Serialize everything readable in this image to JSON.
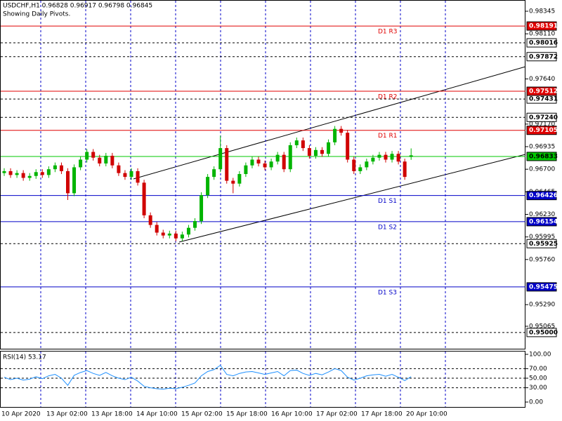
{
  "chart_data": {
    "type": "candlestick",
    "title": "USDCHF,H1  0.96828 0.96917 0.96798 0.96845",
    "subtitle": "Showing Daily Pivots.",
    "up_color": "#00b400",
    "down_color": "#d00000",
    "open": [
      0.9666,
      0.9668,
      0.9664,
      0.9666,
      0.9661,
      0.9663,
      0.9667,
      0.9664,
      0.967,
      0.9674,
      0.9668,
      0.9645,
      0.9672,
      0.968,
      0.9688,
      0.9682,
      0.9676,
      0.9684,
      0.9674,
      0.9666,
      0.9662,
      0.9668,
      0.9656,
      0.9622,
      0.9612,
      0.9604,
      0.9601,
      0.9603,
      0.9598,
      0.9602,
      0.9609,
      0.9616,
      0.9643,
      0.9662,
      0.967,
      0.9692,
      0.9658,
      0.9655,
      0.9665,
      0.9674,
      0.968,
      0.9676,
      0.9672,
      0.9678,
      0.9685,
      0.967,
      0.9695,
      0.97,
      0.9692,
      0.9684,
      0.969,
      0.9686,
      0.9698,
      0.9712,
      0.9708,
      0.968,
      0.9668,
      0.9672,
      0.9678,
      0.9682,
      0.9685,
      0.968,
      0.9686,
      0.9678,
      0.96828
    ],
    "high": [
      0.9671,
      0.9671,
      0.9669,
      0.9669,
      0.9666,
      0.967,
      0.967,
      0.9673,
      0.9677,
      0.9677,
      0.9671,
      0.9675,
      0.9683,
      0.9691,
      0.9691,
      0.9685,
      0.9687,
      0.9687,
      0.9677,
      0.9669,
      0.9671,
      0.9671,
      0.9659,
      0.9625,
      0.9615,
      0.9607,
      0.9606,
      0.9606,
      0.9605,
      0.9612,
      0.9619,
      0.9646,
      0.9665,
      0.9673,
      0.9705,
      0.9695,
      0.9661,
      0.9668,
      0.9677,
      0.9683,
      0.9683,
      0.9679,
      0.9681,
      0.9688,
      0.9688,
      0.9698,
      0.9703,
      0.9703,
      0.9695,
      0.9693,
      0.9693,
      0.9701,
      0.9715,
      0.9715,
      0.9711,
      0.9683,
      0.9675,
      0.9681,
      0.9685,
      0.9688,
      0.9688,
      0.9689,
      0.9689,
      0.9681,
      0.96917
    ],
    "low": [
      0.9663,
      0.9661,
      0.9661,
      0.9658,
      0.9658,
      0.966,
      0.9661,
      0.9661,
      0.9667,
      0.9665,
      0.9638,
      0.9642,
      0.9669,
      0.9677,
      0.9679,
      0.9673,
      0.9673,
      0.9671,
      0.9663,
      0.9659,
      0.9659,
      0.9653,
      0.9619,
      0.9609,
      0.9601,
      0.9598,
      0.9598,
      0.9595,
      0.9595,
      0.9599,
      0.9606,
      0.9613,
      0.964,
      0.9659,
      0.9667,
      0.9655,
      0.9645,
      0.9652,
      0.9662,
      0.9671,
      0.9673,
      0.9669,
      0.9669,
      0.9675,
      0.9667,
      0.9667,
      0.9692,
      0.9689,
      0.9681,
      0.9681,
      0.9683,
      0.9683,
      0.9695,
      0.9705,
      0.9677,
      0.9665,
      0.9665,
      0.9669,
      0.9675,
      0.9679,
      0.9677,
      0.9677,
      0.9675,
      0.9659,
      0.96798
    ],
    "close": [
      0.9668,
      0.9664,
      0.9666,
      0.9661,
      0.9663,
      0.9667,
      0.9664,
      0.967,
      0.9674,
      0.9668,
      0.9645,
      0.9672,
      0.968,
      0.9688,
      0.9682,
      0.9676,
      0.9684,
      0.9674,
      0.9666,
      0.9662,
      0.9668,
      0.9656,
      0.9622,
      0.9612,
      0.9604,
      0.9601,
      0.9603,
      0.9598,
      0.9602,
      0.9609,
      0.9616,
      0.9643,
      0.9662,
      0.967,
      0.9692,
      0.9658,
      0.9655,
      0.9665,
      0.9674,
      0.968,
      0.9676,
      0.9672,
      0.9678,
      0.9685,
      0.967,
      0.9695,
      0.97,
      0.9692,
      0.9684,
      0.969,
      0.9686,
      0.9698,
      0.9712,
      0.9708,
      0.968,
      0.9668,
      0.9672,
      0.9678,
      0.9682,
      0.9685,
      0.968,
      0.9686,
      0.9678,
      0.9662,
      0.96845
    ],
    "ylim": [
      0.94831,
      0.98462
    ],
    "yticks": [
      {
        "value": 0.98345,
        "label": "0.98345"
      },
      {
        "value": 0.9811,
        "label": "0.98110"
      },
      {
        "value": 0.9764,
        "label": "0.97640"
      },
      {
        "value": 0.9717,
        "label": "0.97170"
      },
      {
        "value": 0.96935,
        "label": "0.96935"
      },
      {
        "value": 0.967,
        "label": "0.96700"
      },
      {
        "value": 0.96465,
        "label": "0.96465"
      },
      {
        "value": 0.9623,
        "label": "0.96230"
      },
      {
        "value": 0.95995,
        "label": "0.95995"
      },
      {
        "value": 0.9576,
        "label": "0.95760"
      },
      {
        "value": 0.9529,
        "label": "0.95290"
      },
      {
        "value": 0.95065,
        "label": "0.95065"
      }
    ],
    "pivots": [
      {
        "name": "D1 R3",
        "value": 0.98191,
        "label": "0.98191",
        "color": "#e00000"
      },
      {
        "name": "D1 R2",
        "value": 0.97512,
        "label": "0.97512",
        "color": "#e00000"
      },
      {
        "name": "D1 R1",
        "value": 0.97105,
        "label": "0.97105",
        "color": "#e00000"
      },
      {
        "name": "D1 S1",
        "value": 0.96426,
        "label": "0.96426",
        "color": "#0000c8"
      },
      {
        "name": "D1 S2",
        "value": 0.96154,
        "label": "0.96154",
        "color": "#0000c8"
      },
      {
        "name": "D1 S3",
        "value": 0.95475,
        "label": "0.95475",
        "color": "#0000c8"
      }
    ],
    "levels": [
      {
        "value": 0.98016,
        "label": "0.98016"
      },
      {
        "value": 0.97872,
        "label": "0.97872"
      },
      {
        "value": 0.97431,
        "label": "0.97431"
      },
      {
        "value": 0.9724,
        "label": "0.97240"
      },
      {
        "value": 0.95925,
        "label": "0.95925"
      },
      {
        "value": 0.95,
        "label": "0.95000"
      }
    ],
    "price_line": {
      "value": 0.96833,
      "label": "0.96833",
      "color": "#00c800"
    },
    "x_labels": [
      "10 Apr 2020",
      "13 Apr 02:00",
      "13 Apr 18:00",
      "14 Apr 10:00",
      "15 Apr 02:00",
      "15 Apr 18:00",
      "16 Apr 10:00",
      "17 Apr 02:00",
      "17 Apr 18:00",
      "20 Apr 10:00"
    ],
    "rsi_title": "RSI(14) 53.17",
    "rsi_color": "#1e90ff",
    "rsi": [
      52,
      47,
      50,
      46,
      48,
      53,
      49,
      55,
      58,
      50,
      35,
      56,
      62,
      66,
      60,
      56,
      62,
      55,
      50,
      47,
      52,
      44,
      33,
      30,
      28,
      27,
      29,
      28,
      31,
      35,
      40,
      55,
      64,
      68,
      77,
      58,
      55,
      60,
      63,
      64,
      61,
      58,
      61,
      64,
      55,
      66,
      67,
      60,
      56,
      60,
      57,
      63,
      70,
      66,
      52,
      46,
      50,
      55,
      57,
      58,
      54,
      58,
      52,
      45,
      53.17
    ],
    "rsi_ylim": [
      0,
      100
    ],
    "rsi_yticks": [
      {
        "value": 100,
        "label": "100.00"
      },
      {
        "value": 70,
        "label": "70.00"
      },
      {
        "value": 50,
        "label": "50.00"
      },
      {
        "value": 30,
        "label": "30.00"
      },
      {
        "value": 0,
        "label": "0.00"
      }
    ]
  }
}
